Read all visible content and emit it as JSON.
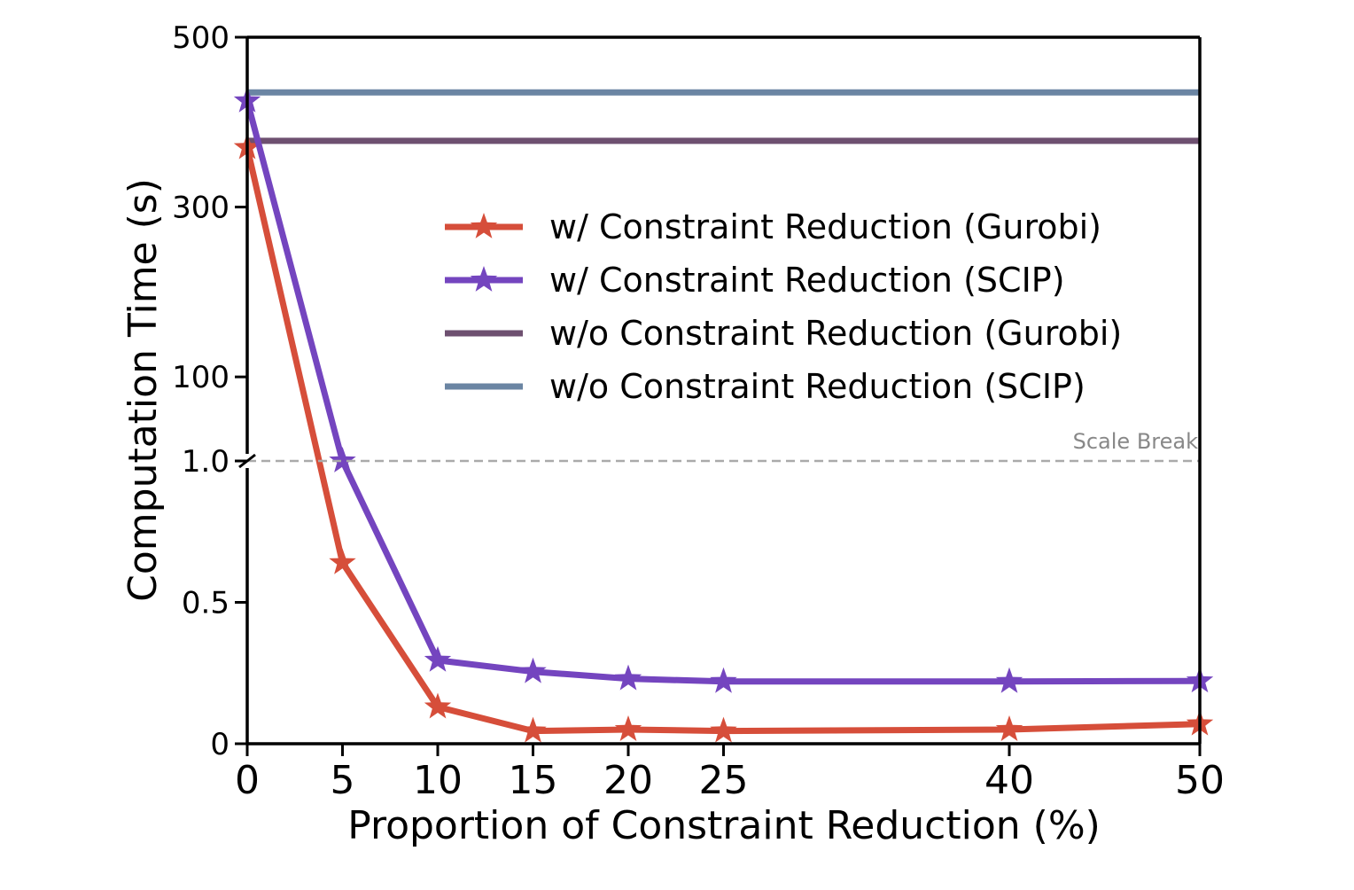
{
  "chart_data": {
    "type": "line",
    "xlabel": "Proportion of Constraint Reduction (%)",
    "ylabel": "Computation Time (s)",
    "x_ticks": [
      0,
      5,
      10,
      15,
      20,
      25,
      40,
      50
    ],
    "x_tick_labels": [
      "0",
      "5",
      "10",
      "15",
      "20",
      "25",
      "40",
      "50"
    ],
    "xlim": [
      0,
      50
    ],
    "y_axis": {
      "broken": true,
      "lower_segment": {
        "range": [
          0,
          1.0
        ],
        "ticks": [
          0,
          0.5,
          1.0
        ],
        "tick_labels": [
          "0",
          "0.5",
          "1.0"
        ]
      },
      "upper_segment": {
        "range": [
          1.0,
          500
        ],
        "ticks": [
          100,
          300,
          500
        ],
        "tick_labels": [
          "100",
          "300",
          "500"
        ]
      }
    },
    "scale_break_label": "Scale Break",
    "legend_position": "center-right",
    "grid": false,
    "series": [
      {
        "name": "w/ Constraint Reduction (Gurobi)",
        "color": "#d64e3a",
        "marker": "star",
        "x": [
          0,
          5,
          10,
          15,
          20,
          25,
          40,
          50
        ],
        "y": [
          370,
          0.64,
          0.13,
          0.045,
          0.05,
          0.045,
          0.05,
          0.07
        ]
      },
      {
        "name": "w/ Constraint Reduction (SCIP)",
        "color": "#7445bf",
        "marker": "star",
        "x": [
          0,
          5,
          10,
          15,
          20,
          25,
          40,
          50
        ],
        "y": [
          425,
          1.0,
          0.295,
          0.255,
          0.23,
          0.22,
          0.22,
          0.222
        ]
      },
      {
        "name": "w/o Constraint Reduction (Gurobi)",
        "color": "#6e5070",
        "marker": "none",
        "x": [
          0,
          50
        ],
        "y": [
          378,
          378
        ]
      },
      {
        "name": "w/o Constraint Reduction (SCIP)",
        "color": "#6b85a3",
        "marker": "none",
        "x": [
          0,
          50
        ],
        "y": [
          435,
          435
        ]
      }
    ]
  }
}
